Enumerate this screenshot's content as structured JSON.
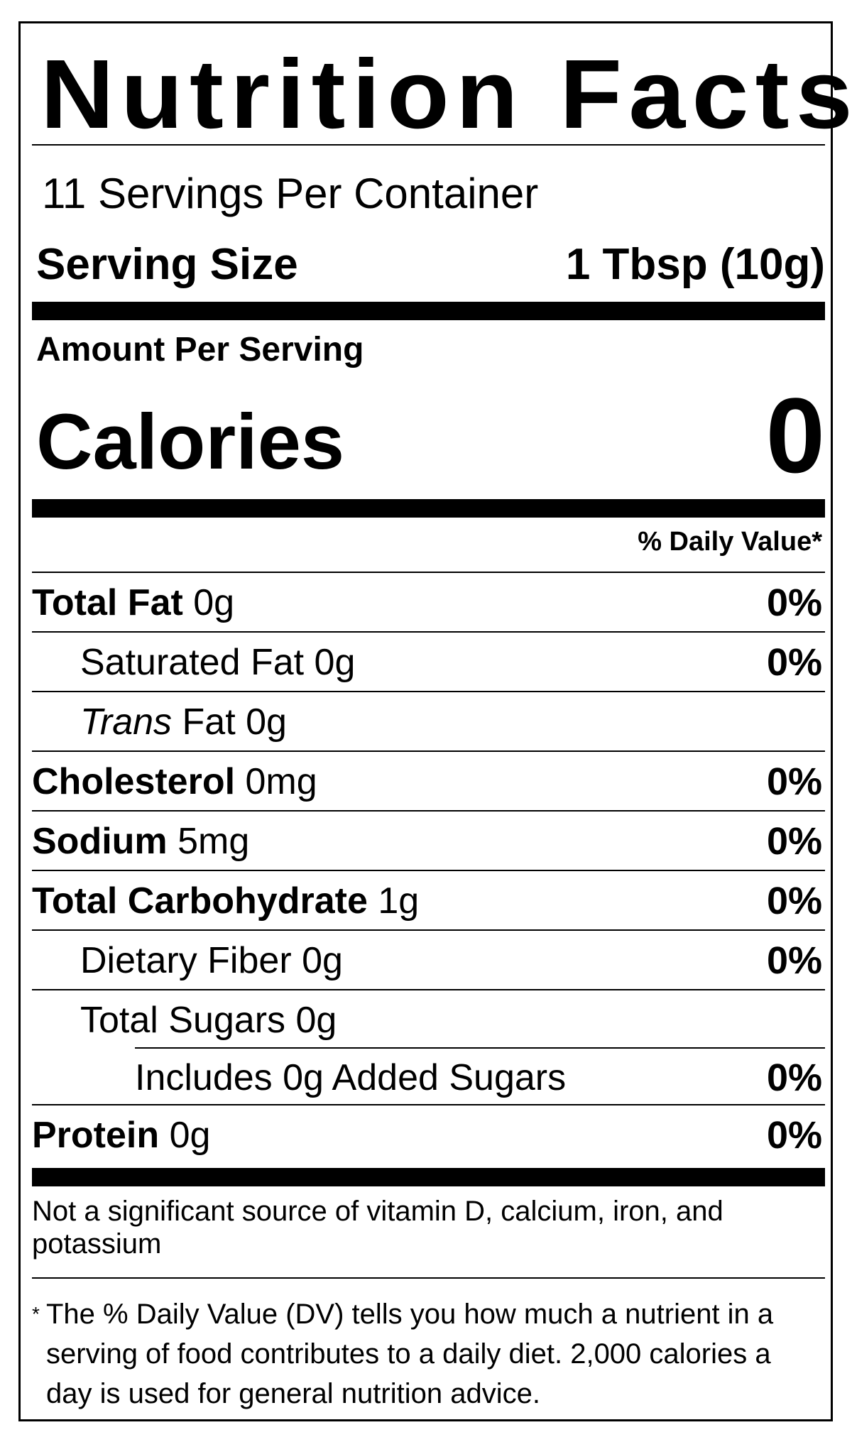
{
  "title": "Nutrition Facts",
  "servings_per_container": "11 Servings Per Container",
  "serving_size": {
    "label": "Serving Size",
    "value": "1 Tbsp (10g)"
  },
  "amount_per_serving": "Amount Per Serving",
  "calories": {
    "label": "Calories",
    "value": "0"
  },
  "daily_value_header": "% Daily Value*",
  "nutrients": [
    {
      "name": "Total Fat",
      "amount": "0g",
      "dv": "0%"
    },
    {
      "name": "Saturated Fat",
      "amount": "0g",
      "dv": "0%"
    },
    {
      "name_italic": "Trans",
      "name": "Fat",
      "amount": "0g",
      "dv": ""
    },
    {
      "name": "Cholesterol",
      "amount": "0mg",
      "dv": "0%"
    },
    {
      "name": "Sodium",
      "amount": "5mg",
      "dv": "0%"
    },
    {
      "name": "Total Carbohydrate",
      "amount": "1g",
      "dv": "0%"
    },
    {
      "name": "Dietary Fiber",
      "amount": "0g",
      "dv": "0%"
    },
    {
      "name": "Total Sugars",
      "amount": "0g",
      "dv": ""
    },
    {
      "name": "Includes 0g Added Sugars",
      "amount": "",
      "dv": "0%"
    },
    {
      "name": "Protein",
      "amount": "0g",
      "dv": "0%"
    }
  ],
  "not_significant": "Not a significant source of vitamin D, calcium, iron, and potassium",
  "footnote_marker": "*",
  "footnote": "The % Daily Value (DV) tells you how much a nutrient in a serving of food contributes to a daily diet. 2,000 calories a day is used for general nutrition advice."
}
